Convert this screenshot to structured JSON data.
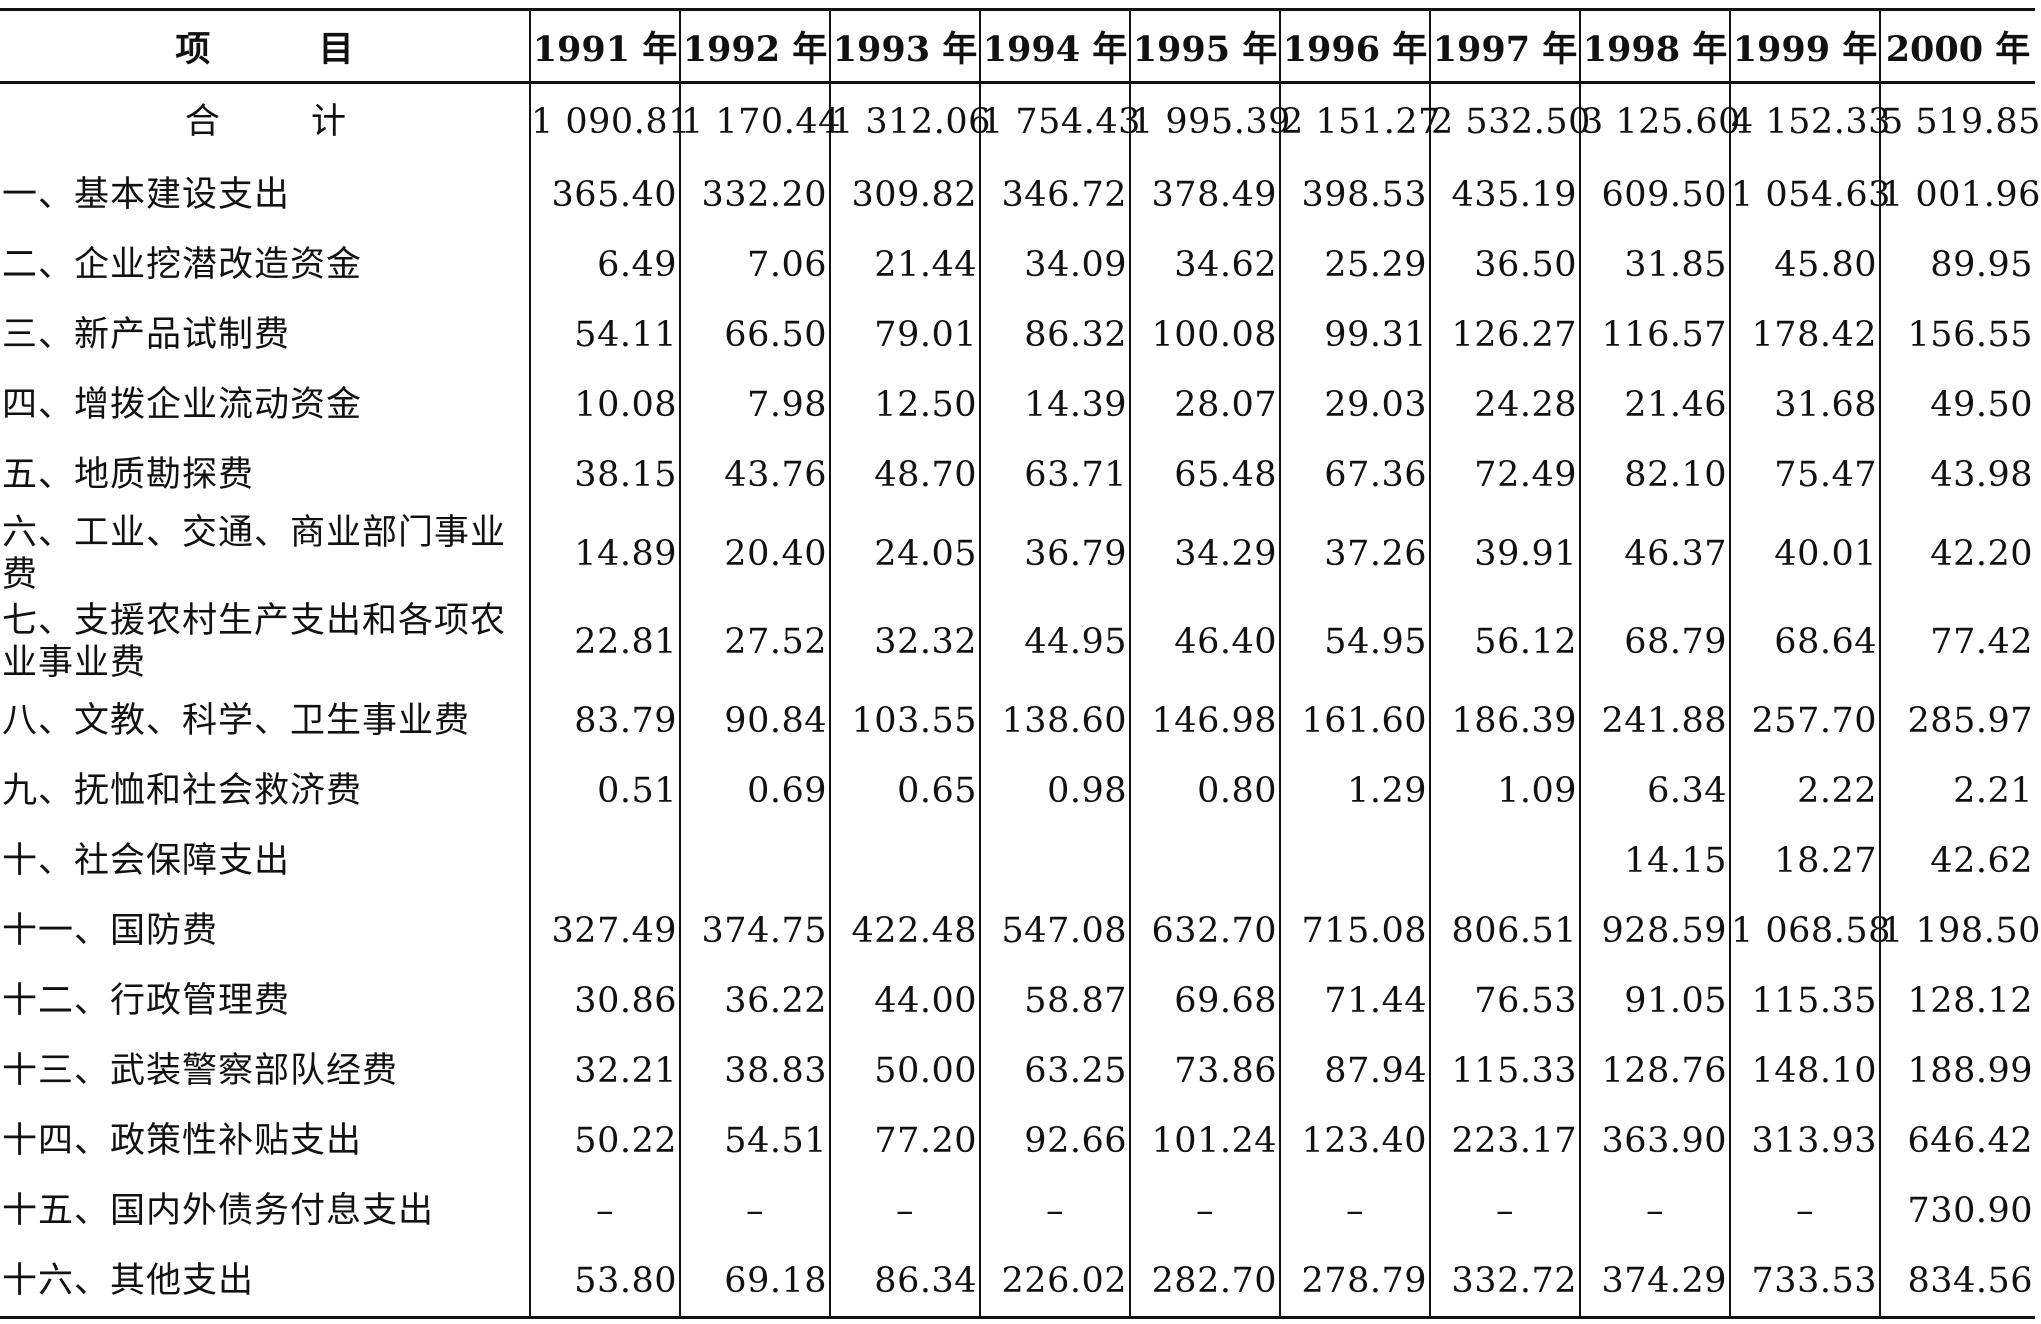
{
  "header": {
    "label": "项 目",
    "years": [
      "1991 年",
      "1992 年",
      "1993 年",
      "1994 年",
      "1995 年",
      "1996 年",
      "1997 年",
      "1998 年",
      "1999 年",
      "2000 年"
    ]
  },
  "rows": [
    {
      "label": "合 计",
      "values": [
        "1 090.81",
        "1 170.44",
        "1 312.06",
        "1 754.43",
        "1 995.39",
        "2 151.27",
        "2 532.50",
        "3 125.60",
        "4 152.33",
        "5 519.85"
      ]
    },
    {
      "label": "一、基本建设支出",
      "values": [
        "365.40",
        "332.20",
        "309.82",
        "346.72",
        "378.49",
        "398.53",
        "435.19",
        "609.50",
        "1 054.63",
        "1 001.96"
      ]
    },
    {
      "label": "二、企业挖潜改造资金",
      "values": [
        "6.49",
        "7.06",
        "21.44",
        "34.09",
        "34.62",
        "25.29",
        "36.50",
        "31.85",
        "45.80",
        "89.95"
      ]
    },
    {
      "label": "三、新产品试制费",
      "values": [
        "54.11",
        "66.50",
        "79.01",
        "86.32",
        "100.08",
        "99.31",
        "126.27",
        "116.57",
        "178.42",
        "156.55"
      ]
    },
    {
      "label": "四、增拨企业流动资金",
      "values": [
        "10.08",
        "7.98",
        "12.50",
        "14.39",
        "28.07",
        "29.03",
        "24.28",
        "21.46",
        "31.68",
        "49.50"
      ]
    },
    {
      "label": "五、地质勘探费",
      "values": [
        "38.15",
        "43.76",
        "48.70",
        "63.71",
        "65.48",
        "67.36",
        "72.49",
        "82.10",
        "75.47",
        "43.98"
      ]
    },
    {
      "label": "六、工业、交通、商业部门事业费",
      "values": [
        "14.89",
        "20.40",
        "24.05",
        "36.79",
        "34.29",
        "37.26",
        "39.91",
        "46.37",
        "40.01",
        "42.20"
      ]
    },
    {
      "label": "七、支援农村生产支出和各项农业事业费",
      "values": [
        "22.81",
        "27.52",
        "32.32",
        "44.95",
        "46.40",
        "54.95",
        "56.12",
        "68.79",
        "68.64",
        "77.42"
      ]
    },
    {
      "label": "八、文教、科学、卫生事业费",
      "values": [
        "83.79",
        "90.84",
        "103.55",
        "138.60",
        "146.98",
        "161.60",
        "186.39",
        "241.88",
        "257.70",
        "285.97"
      ]
    },
    {
      "label": "九、抚恤和社会救济费",
      "values": [
        "0.51",
        "0.69",
        "0.65",
        "0.98",
        "0.80",
        "1.29",
        "1.09",
        "6.34",
        "2.22",
        "2.21"
      ]
    },
    {
      "label": "十、社会保障支出",
      "values": [
        "",
        "",
        "",
        "",
        "",
        "",
        "",
        "14.15",
        "18.27",
        "42.62"
      ]
    },
    {
      "label": "十一、国防费",
      "values": [
        "327.49",
        "374.75",
        "422.48",
        "547.08",
        "632.70",
        "715.08",
        "806.51",
        "928.59",
        "1 068.58",
        "1 198.50"
      ]
    },
    {
      "label": "十二、行政管理费",
      "values": [
        "30.86",
        "36.22",
        "44.00",
        "58.87",
        "69.68",
        "71.44",
        "76.53",
        "91.05",
        "115.35",
        "128.12"
      ]
    },
    {
      "label": "十三、武装警察部队经费",
      "values": [
        "32.21",
        "38.83",
        "50.00",
        "63.25",
        "73.86",
        "87.94",
        "115.33",
        "128.76",
        "148.10",
        "188.99"
      ]
    },
    {
      "label": "十四、政策性补贴支出",
      "values": [
        "50.22",
        "54.51",
        "77.20",
        "92.66",
        "101.24",
        "123.40",
        "223.17",
        "363.90",
        "313.93",
        "646.42"
      ]
    },
    {
      "label": "十五、国内外债务付息支出",
      "values": [
        "–",
        "–",
        "–",
        "–",
        "–",
        "–",
        "–",
        "–",
        "–",
        "730.90"
      ]
    },
    {
      "label": "十六、其他支出",
      "values": [
        "53.80",
        "69.18",
        "86.34",
        "226.02",
        "282.70",
        "278.79",
        "332.72",
        "374.29",
        "733.53",
        "834.56"
      ]
    }
  ]
}
